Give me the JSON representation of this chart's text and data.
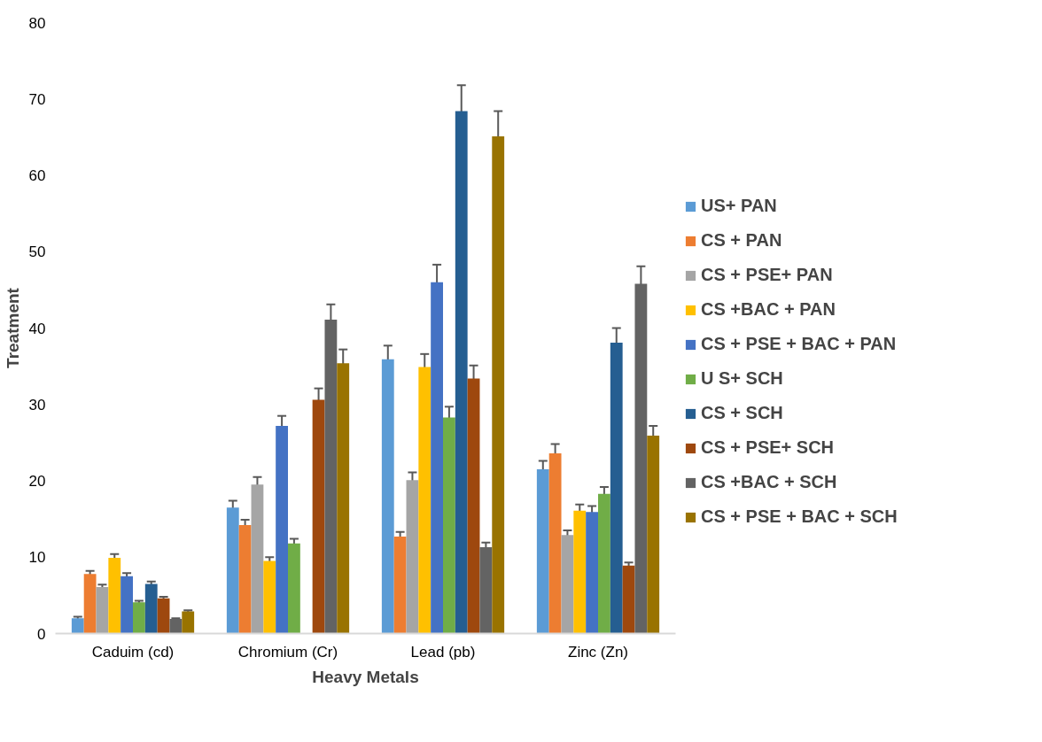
{
  "chart_data": {
    "type": "bar",
    "xlabel": "Heavy Metals",
    "ylabel": "Treatment",
    "categories": [
      "Caduim (cd)",
      "Chromium (Cr)",
      "Lead (pb)",
      "Zinc (Zn)"
    ],
    "ylim": [
      0,
      80
    ],
    "yticks": [
      0,
      10,
      20,
      30,
      40,
      50,
      60,
      70,
      80
    ],
    "grid": false,
    "legend": "right",
    "series": [
      {
        "name": "US+ PAN",
        "color": "#5b9bd5",
        "values": [
          2.0,
          16.5,
          35.9,
          21.5
        ],
        "errors": [
          0.2,
          0.9,
          1.8,
          1.1
        ]
      },
      {
        "name": "CS + PAN",
        "color": "#ed7d31",
        "values": [
          7.8,
          14.2,
          12.7,
          23.6
        ],
        "errors": [
          0.4,
          0.7,
          0.6,
          1.2
        ]
      },
      {
        "name": "CS + PSE+ PAN",
        "color": "#a5a5a5",
        "values": [
          6.1,
          19.5,
          20.1,
          12.9
        ],
        "errors": [
          0.3,
          1.0,
          1.0,
          0.6
        ]
      },
      {
        "name": "CS +BAC + PAN",
        "color": "#ffc000",
        "values": [
          9.9,
          9.5,
          34.9,
          16.1
        ],
        "errors": [
          0.5,
          0.5,
          1.7,
          0.8
        ]
      },
      {
        "name": "CS + PSE + BAC + PAN",
        "color": "#4472c4",
        "values": [
          7.5,
          27.2,
          46.0,
          15.9
        ],
        "errors": [
          0.4,
          1.3,
          2.3,
          0.8
        ]
      },
      {
        "name": "U S+ SCH",
        "color": "#70ad47",
        "values": [
          4.1,
          11.8,
          28.3,
          18.3
        ],
        "errors": [
          0.2,
          0.6,
          1.4,
          0.9
        ]
      },
      {
        "name": "CS + SCH",
        "color": "#255e91",
        "values": [
          6.5,
          0,
          68.4,
          38.1
        ],
        "errors": [
          0.3,
          null,
          3.4,
          1.9
        ]
      },
      {
        "name": "CS + PSE+ SCH",
        "color": "#9e480e",
        "values": [
          4.6,
          30.6,
          33.4,
          8.9
        ],
        "errors": [
          0.2,
          1.5,
          1.7,
          0.4
        ]
      },
      {
        "name": "CS +BAC + SCH",
        "color": "#636363",
        "values": [
          1.9,
          41.1,
          11.3,
          45.8
        ],
        "errors": [
          0.1,
          2.0,
          0.6,
          2.3
        ]
      },
      {
        "name": "CS + PSE + BAC + SCH",
        "color": "#997300",
        "values": [
          2.9,
          35.4,
          65.1,
          25.9
        ],
        "errors": [
          0.15,
          1.8,
          3.3,
          1.3
        ]
      }
    ]
  }
}
